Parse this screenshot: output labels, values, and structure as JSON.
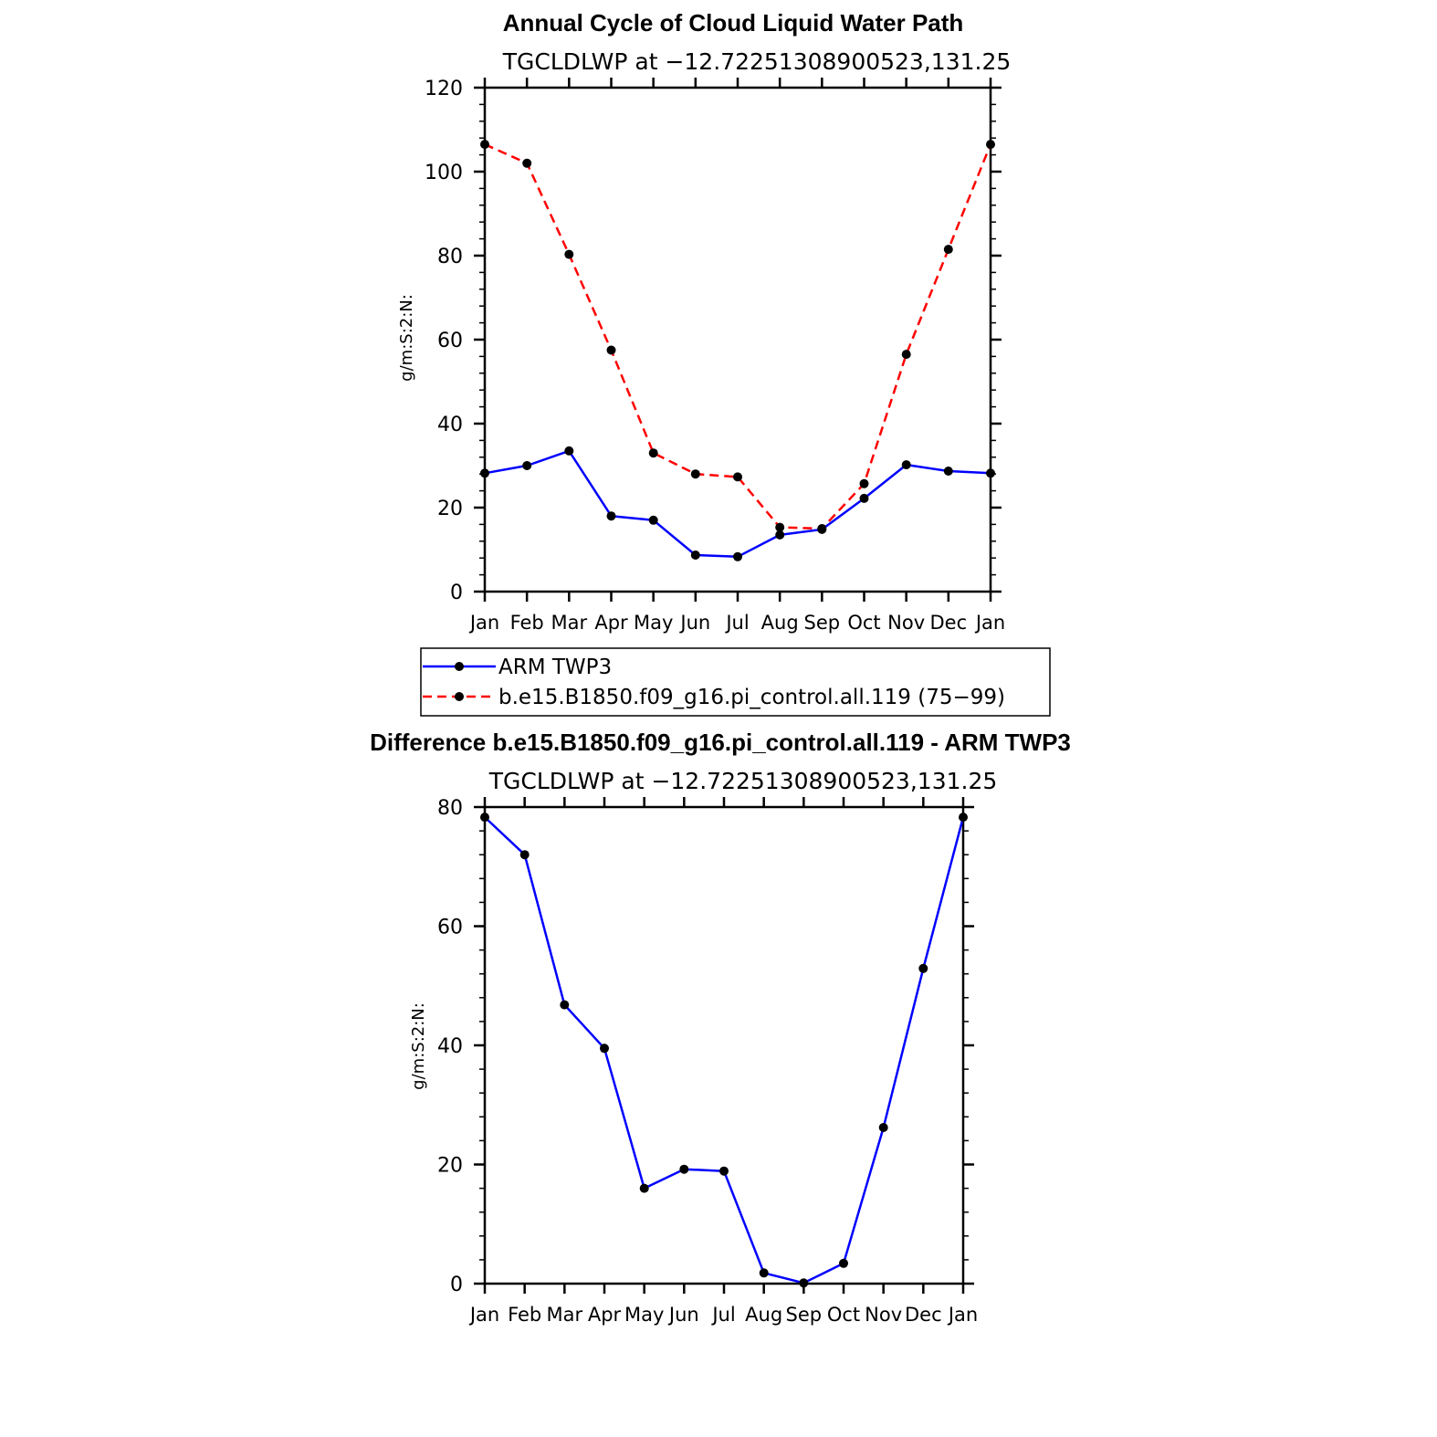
{
  "chart_data": [
    {
      "type": "line",
      "title": "Annual Cycle of Cloud Liquid Water Path",
      "subtitle": "TGCLDLWP  at  −12.72251308900523,131.25",
      "ylabel": "g/m:S:2:N:",
      "xlabel": "",
      "categories": [
        "Jan",
        "Feb",
        "Mar",
        "Apr",
        "May",
        "Jun",
        "Jul",
        "Aug",
        "Sep",
        "Oct",
        "Nov",
        "Dec",
        "Jan"
      ],
      "ylim": [
        0,
        120
      ],
      "yticks": [
        0,
        20,
        40,
        60,
        80,
        100,
        120
      ],
      "grid": false,
      "legend_position": "below",
      "series": [
        {
          "name": "ARM TWP3",
          "color": "#0000ff",
          "dash": "solid",
          "values": [
            28.2,
            30.0,
            33.5,
            18.0,
            17.0,
            8.7,
            8.3,
            13.5,
            14.8,
            22.2,
            30.2,
            28.7,
            28.2
          ]
        },
        {
          "name": "b.e15.B1850.f09_g16.pi_control.all.119 (75−99)",
          "color": "#ff0000",
          "dash": "dashed",
          "values": [
            106.5,
            102.0,
            80.3,
            57.5,
            33.0,
            28.0,
            27.3,
            15.3,
            15.0,
            25.7,
            56.5,
            81.5,
            106.5
          ]
        }
      ]
    },
    {
      "type": "line",
      "title": "Difference b.e15.B1850.f09_g16.pi_control.all.119 - ARM TWP3",
      "subtitle": "TGCLDLWP  at  −12.72251308900523,131.25",
      "ylabel": "g/m:S:2:N:",
      "xlabel": "",
      "categories": [
        "Jan",
        "Feb",
        "Mar",
        "Apr",
        "May",
        "Jun",
        "Jul",
        "Aug",
        "Sep",
        "Oct",
        "Nov",
        "Dec",
        "Jan"
      ],
      "ylim": [
        0,
        80
      ],
      "yticks": [
        0,
        20,
        40,
        60,
        80
      ],
      "grid": false,
      "series": [
        {
          "color": "#0000ff",
          "dash": "solid",
          "values": [
            78.3,
            72.0,
            46.8,
            39.5,
            16.0,
            19.2,
            18.9,
            1.8,
            0.1,
            3.4,
            26.2,
            52.9,
            78.3
          ]
        }
      ]
    }
  ]
}
